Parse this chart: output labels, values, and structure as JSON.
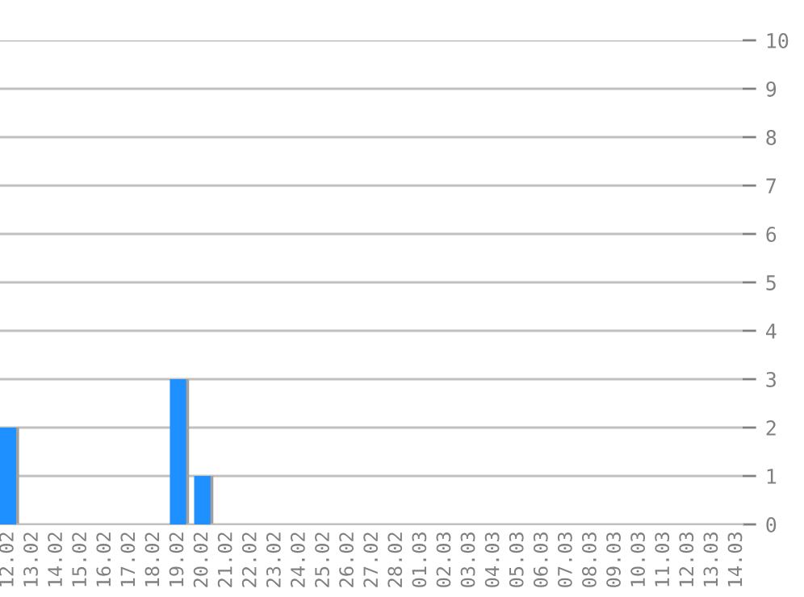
{
  "chart_data": {
    "type": "bar",
    "categories": [
      "12.02",
      "13.02",
      "14.02",
      "15.02",
      "16.02",
      "17.02",
      "18.02",
      "19.02",
      "20.02",
      "21.02",
      "22.02",
      "23.02",
      "24.02",
      "25.02",
      "26.02",
      "27.02",
      "28.02",
      "01.03",
      "02.03",
      "03.03",
      "04.03",
      "05.03",
      "06.03",
      "07.03",
      "08.03",
      "09.03",
      "10.03",
      "11.03",
      "12.03",
      "13.03",
      "14.03"
    ],
    "values": [
      2,
      0,
      0,
      0,
      0,
      0,
      0,
      3,
      1,
      0,
      0,
      0,
      0,
      0,
      0,
      0,
      0,
      0,
      0,
      0,
      0,
      0,
      0,
      0,
      0,
      0,
      0,
      0,
      0,
      0,
      0
    ],
    "color": "#1e90ff",
    "ylim": [
      0,
      10
    ],
    "yticks": [
      0,
      1,
      2,
      3,
      4,
      5,
      6,
      7,
      8,
      9,
      10
    ],
    "grid": "y",
    "legend": false
  }
}
